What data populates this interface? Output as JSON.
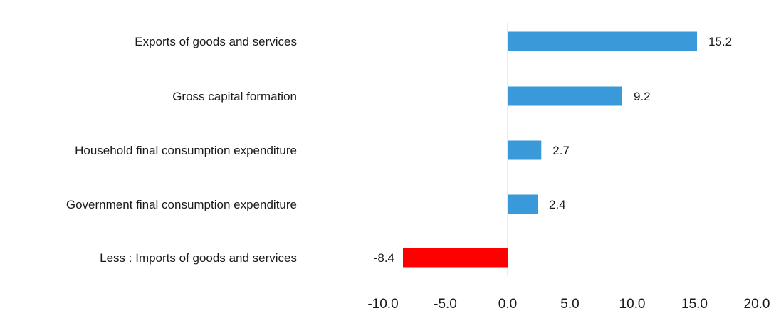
{
  "chart_data": {
    "type": "bar",
    "orientation": "horizontal",
    "categories": [
      "Exports of goods and services",
      "Gross capital formation",
      "Household final consumption expenditure",
      "Government final consumption expenditure",
      "Less : Imports of goods and services"
    ],
    "values": [
      15.2,
      9.2,
      2.7,
      2.4,
      -8.4
    ],
    "value_labels": [
      "15.2",
      "9.2",
      "2.7",
      "2.4",
      "-8.4"
    ],
    "colors": [
      "#3a9ad9",
      "#3a9ad9",
      "#3a9ad9",
      "#3a9ad9",
      "#ff0000"
    ],
    "xlim": [
      -10.0,
      20.0
    ],
    "xticks": [
      -10.0,
      -5.0,
      0.0,
      5.0,
      10.0,
      15.0,
      20.0
    ],
    "xtick_labels": [
      "-10.0",
      "-5.0",
      "0.0",
      "5.0",
      "10.0",
      "15.0",
      "20.0"
    ],
    "grid": false,
    "legend": "none",
    "title": "",
    "xlabel": "",
    "ylabel": ""
  }
}
